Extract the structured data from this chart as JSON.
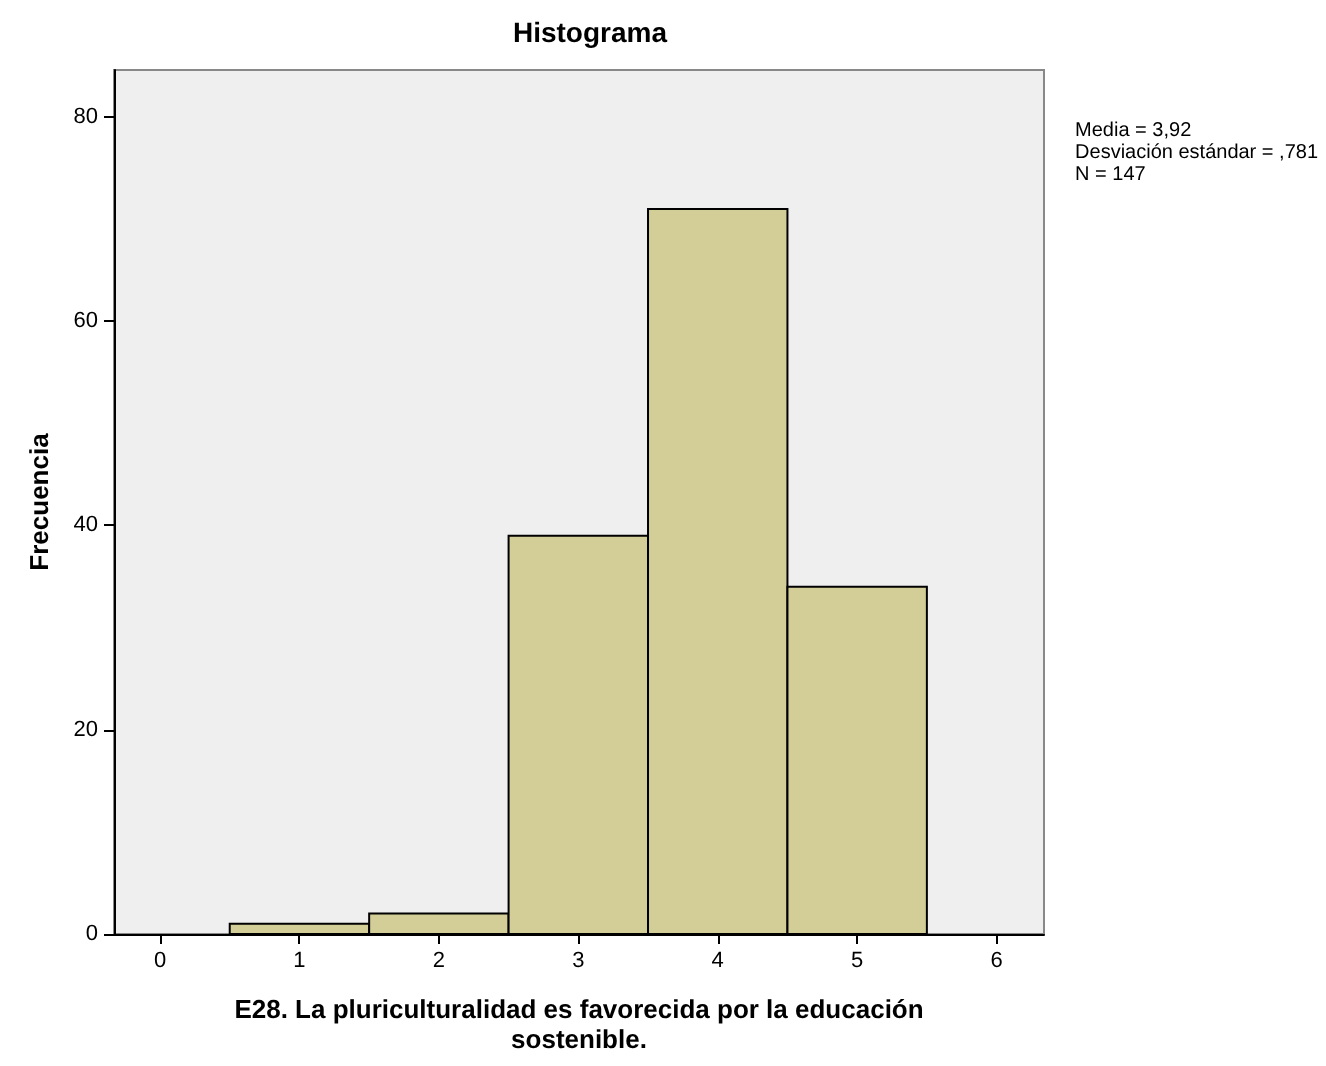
{
  "chart_data": {
    "type": "histogram",
    "title": "Histograma",
    "xlabel": "E28. La pluriculturalidad es favorecida por la educación\nsostenible.",
    "ylabel": "Frecuencia",
    "bins": [
      0.5,
      1.5,
      2.5,
      3.5,
      4.5,
      5.5
    ],
    "values": [
      1,
      2,
      39,
      71,
      34
    ],
    "color": "#d3ce97",
    "xlim": [
      -0.33,
      6.34
    ],
    "xticks": [
      0,
      1,
      2,
      3,
      4,
      5,
      6
    ],
    "ylim": [
      0,
      84.6
    ],
    "yticks": [
      0,
      20,
      40,
      60,
      80
    ],
    "annotations": [
      "Media = 3,92\nDesviación estándar = ,781\nN = 147"
    ],
    "grid": false
  }
}
